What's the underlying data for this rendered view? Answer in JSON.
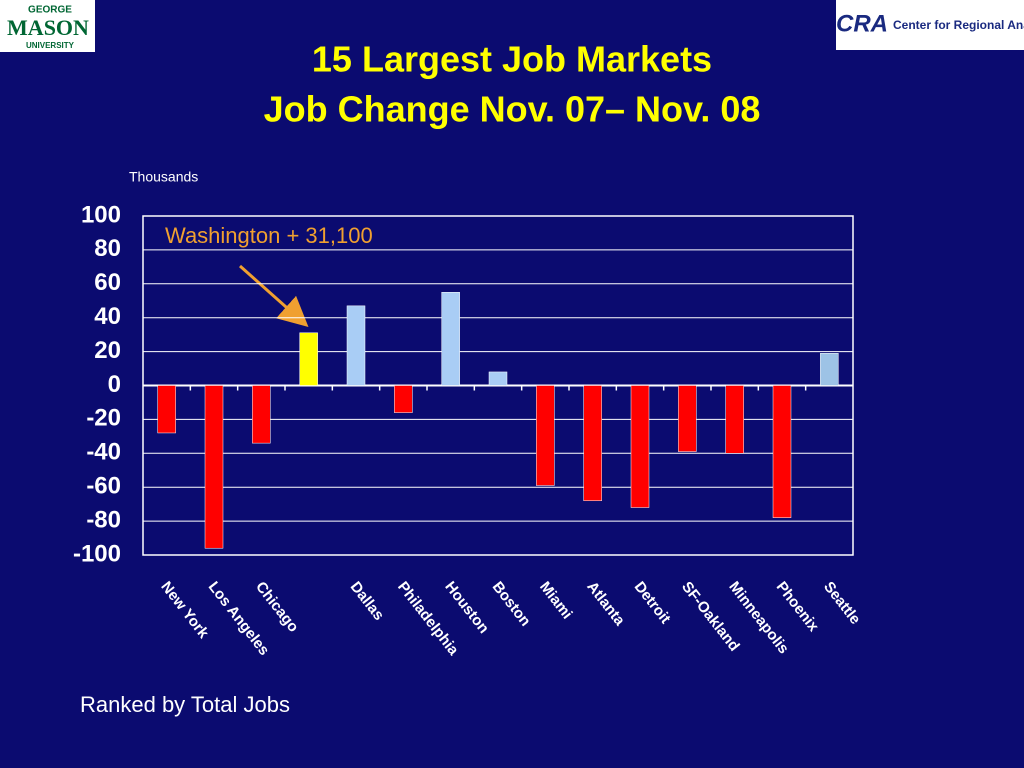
{
  "logos": {
    "left": [
      "GEORGE",
      "MASON",
      "UNIVERSITY"
    ],
    "right_mark": "CRA",
    "right": "Center for Regional Analysis"
  },
  "chart_data": {
    "type": "bar",
    "title": "15 Largest Job Markets",
    "subtitle": "Job Change Nov. 07– Nov. 08",
    "y_label": "Thousands",
    "annotation": "Washington + 31,100",
    "footnote": "Ranked by Total Jobs",
    "categories": [
      "New York",
      "Los Angeles",
      "Chicago",
      null,
      "Dallas",
      "Philadelphia",
      "Houston",
      "Boston",
      "Miami",
      "Atlanta",
      "Detroit",
      "SF-Oakland",
      "Minneapolis",
      "Phoenix",
      "Seattle"
    ],
    "values": [
      -28,
      -96,
      -34,
      31.1,
      47,
      -16,
      55,
      8,
      -59,
      -68,
      -72,
      -39,
      -40,
      -78,
      19
    ],
    "colors": [
      "#ff0000",
      "#ff0000",
      "#ff0000",
      "#ffff00",
      "#a9cdf5",
      "#ff0000",
      "#a9cdf5",
      "#a9cdf5",
      "#ff0000",
      "#ff0000",
      "#ff0000",
      "#ff0000",
      "#ff0000",
      "#ff0000",
      "#9dc3e6"
    ],
    "ylim": [
      -100,
      100
    ],
    "yticks": [
      -100,
      -80,
      -60,
      -40,
      -20,
      0,
      20,
      40,
      60,
      80,
      100
    ],
    "grid": true
  }
}
